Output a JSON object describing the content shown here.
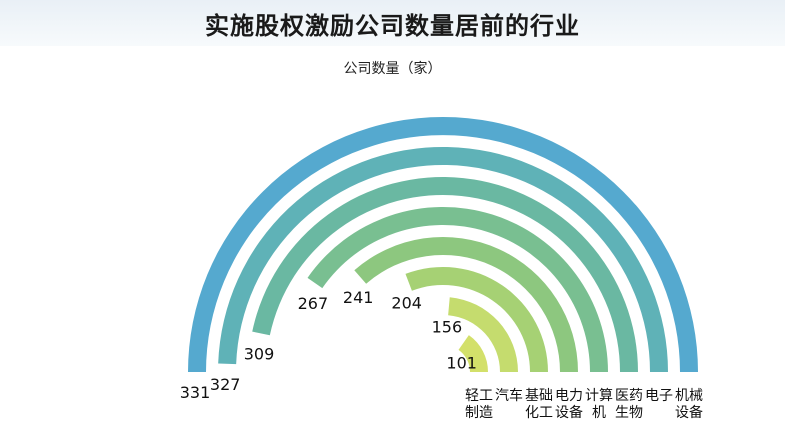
{
  "chart_data": {
    "type": "bar",
    "title": "实施股权激励公司数量居前的行业",
    "ylabel": "公司数量（家）",
    "categories": [
      [
        "轻工",
        "制造"
      ],
      [
        "汽车"
      ],
      [
        "基础",
        "化工"
      ],
      [
        "电力",
        "设备"
      ],
      [
        "计算",
        "机"
      ],
      [
        "医药",
        "生物"
      ],
      [
        "电子"
      ],
      [
        "机械",
        "设备"
      ]
    ],
    "values": [
      101,
      156,
      204,
      241,
      267,
      309,
      327,
      331
    ],
    "ylim": [
      0,
      360
    ],
    "legend": "none",
    "grid": false,
    "colors": [
      "#d3e06a",
      "#c5dc6e",
      "#a6d174",
      "#8dc77f",
      "#79bf91",
      "#6ab8a2",
      "#5fb2b7",
      "#55a9cf"
    ]
  }
}
